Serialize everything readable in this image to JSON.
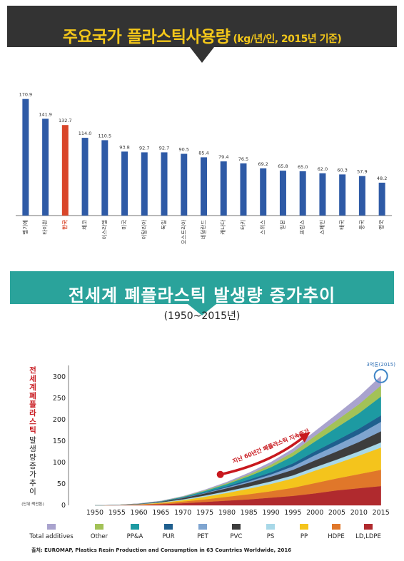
{
  "banner1": {
    "title": "주요국가 플라스틱사용량",
    "subtitle": "(kg/년/인, 2015년 기준)"
  },
  "banner2": {
    "title": "전세계 폐플라스틱 발생량 증가추이",
    "subtitle": "(1950~2015년)"
  },
  "colors": {
    "bar": "#2e5aa6",
    "bar_highlight": "#d9462a",
    "banner1_bg": "#333333",
    "banner1_text": "#f3c71a",
    "banner2_bg": "#2aa39b"
  },
  "chart2_ylabel_red": "전세계폐플라스틱",
  "chart2_ylabel_black": "발생량증가추이",
  "chart2_unit": "(단위:백만톤)",
  "annotation_arrow": "지난 60년간 폐플라스틱 지속증가",
  "annotation_peak": "3억톤(2015)",
  "source": "출처: EUROMAP, Plastics Resin Production and Consumption in 63 Countries Worldwide, 2016",
  "chart_data": [
    {
      "type": "bar",
      "title": "주요국가 플라스틱사용량",
      "categories": [
        "벨기에",
        "타이완",
        "한국",
        "체코",
        "이스라엘",
        "미국",
        "이탈리아",
        "독일",
        "오스트리아",
        "네덜란드",
        "캐나다",
        "터키",
        "스위스",
        "일본",
        "프랑스",
        "스페인",
        "태국",
        "중국",
        "영국"
      ],
      "values": [
        170.9,
        141.9,
        132.7,
        114.0,
        110.5,
        93.8,
        92.7,
        92.7,
        90.5,
        85.4,
        79.4,
        76.5,
        69.2,
        65.8,
        65.0,
        62.0,
        60.3,
        57.9,
        48.2
      ],
      "value_labels": [
        "170.9",
        "141.9",
        "132.7",
        "114.0",
        "110.5",
        "93.8",
        "92.7",
        "92.7",
        "90.5",
        "85.4",
        "79.4",
        "76.5",
        "69.2",
        "65.8",
        "65.0",
        "62.0",
        "60.3",
        "57.9",
        "48.2"
      ],
      "highlight": "한국",
      "ylim": [
        0,
        180
      ]
    },
    {
      "type": "area",
      "title": "전세계 폐플라스틱 발생량 증가추이",
      "x": [
        1950,
        1955,
        1960,
        1965,
        1970,
        1975,
        1980,
        1985,
        1990,
        1995,
        2000,
        2005,
        2010,
        2015
      ],
      "x_ticks": [
        "1950",
        "1955",
        "1960",
        "1965",
        "1970",
        "1975",
        "1980",
        "1985",
        "1990",
        "1995",
        "2000",
        "2005",
        "2010",
        "2015"
      ],
      "y_ticks": [
        "0",
        "50",
        "100",
        "150",
        "200",
        "250",
        "300"
      ],
      "ylim": [
        0,
        320
      ],
      "xlim": [
        1944,
        2017
      ],
      "series": [
        {
          "name": "LD,LDPE",
          "color": "#b02a2e",
          "values": [
            0,
            0.3,
            1,
            2.5,
            5,
            8,
            11,
            14,
            18,
            22,
            28,
            35,
            40,
            45
          ]
        },
        {
          "name": "HDPE",
          "color": "#e0772a",
          "values": [
            0,
            0.2,
            0.8,
            2,
            4,
            6,
            9,
            12,
            15,
            19,
            24,
            28,
            33,
            38
          ]
        },
        {
          "name": "PP",
          "color": "#f4c41c",
          "values": [
            0,
            0.1,
            0.6,
            1.5,
            3,
            6,
            9,
            13,
            17,
            22,
            29,
            35,
            43,
            52
          ]
        },
        {
          "name": "PS",
          "color": "#a8d8e8",
          "values": [
            0,
            0.1,
            0.5,
            1,
            2,
            3,
            4,
            5,
            6,
            7,
            8,
            9,
            10,
            12
          ]
        },
        {
          "name": "PVC",
          "color": "#3d3d3d",
          "values": [
            0,
            0.1,
            0.6,
            1.5,
            3,
            5,
            7,
            9,
            11,
            13,
            16,
            19,
            22,
            26
          ]
        },
        {
          "name": "PET",
          "color": "#7fa5d0",
          "values": [
            0,
            0,
            0.1,
            0.3,
            0.5,
            1,
            2,
            3,
            5,
            8,
            12,
            15,
            18,
            22
          ]
        },
        {
          "name": "PUR",
          "color": "#1f5f8e",
          "values": [
            0,
            0,
            0.1,
            0.3,
            0.8,
            1.5,
            2.5,
            4,
            5,
            7,
            9,
            11,
            13,
            15
          ]
        },
        {
          "name": "PP&A",
          "color": "#1d9aa2",
          "values": [
            0,
            0,
            0.2,
            0.6,
            1.5,
            3,
            5,
            8,
            12,
            17,
            23,
            30,
            36,
            44
          ]
        },
        {
          "name": "Other",
          "color": "#a3c257",
          "values": [
            0,
            0,
            0.1,
            0.3,
            0.8,
            1.5,
            2.5,
            4,
            6,
            9,
            13,
            17,
            21,
            26
          ]
        },
        {
          "name": "Total additives",
          "color": "#a9a3ce",
          "values": [
            0,
            0,
            0.1,
            0.3,
            0.8,
            1.5,
            2.5,
            4,
            6,
            8,
            11,
            14,
            18,
            22
          ]
        }
      ],
      "total_2015": 302
    }
  ]
}
